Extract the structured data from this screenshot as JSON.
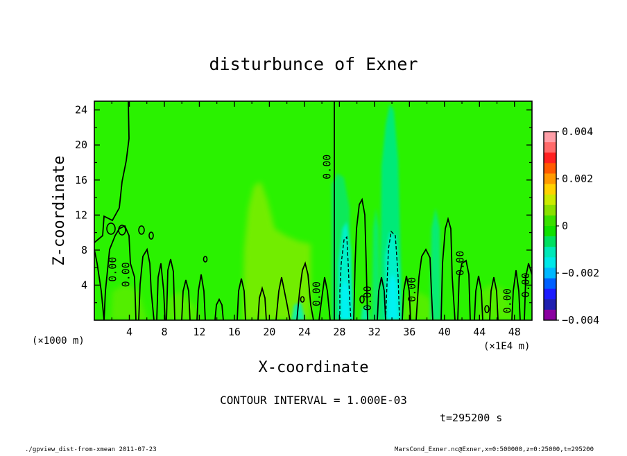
{
  "chart_data": {
    "type": "heatmap",
    "title": "disturbunce of Exner",
    "xlabel": "X-coordinate",
    "ylabel": "Z-coordinate",
    "x_unit_left": "(×1000 m)",
    "x_unit_right": "(×1E4 m)",
    "xlim": [
      0,
      50
    ],
    "ylim": [
      0,
      25
    ],
    "xticks": [
      "4",
      "8",
      "12",
      "16",
      "20",
      "24",
      "28",
      "32",
      "36",
      "40",
      "44",
      "48"
    ],
    "yticks": [
      "4",
      "8",
      "12",
      "16",
      "20",
      "24"
    ],
    "colorbar": {
      "min": -0.004,
      "max": 0.004,
      "labels": [
        "0.004",
        "0.002",
        "0",
        "−0.002",
        "−0.004"
      ],
      "colors": [
        "#ff9fa8",
        "#ff6a6a",
        "#ff2020",
        "#ff5a00",
        "#ff9a00",
        "#ffd200",
        "#ccea00",
        "#8ae000",
        "#3ae000",
        "#10e000",
        "#00e060",
        "#00e8b8",
        "#00e8e8",
        "#00b8ff",
        "#0060ff",
        "#1c1cff",
        "#2020b0",
        "#8a00a0"
      ]
    },
    "contour_labels": [
      {
        "text": "0.00",
        "x": 27.0,
        "z": 17.5
      },
      {
        "text": "0.00",
        "x": 2.5,
        "z": 5.8
      },
      {
        "text": "0.00",
        "x": 4.0,
        "z": 5.2
      },
      {
        "text": "0.00",
        "x": 25.8,
        "z": 3.0
      },
      {
        "text": "0.00",
        "x": 31.6,
        "z": 2.5
      },
      {
        "text": "0.00",
        "x": 36.7,
        "z": 3.5
      },
      {
        "text": "0.00",
        "x": 42.2,
        "z": 6.5
      },
      {
        "text": "0.00",
        "x": 47.6,
        "z": 2.2
      },
      {
        "text": "0.00",
        "x": 49.7,
        "z": 4.0
      }
    ],
    "contour_interval_text": "CONTOUR INTERVAL = 1.000E-03",
    "time_text": "t=295200 s"
  },
  "footer": {
    "left": "./gpview_dist-from-xmean  2011-07-23",
    "right": "MarsCond_Exner.nc@Exner,x=0:500000,z=0:25000,t=295200"
  },
  "colors": {
    "background": "#2af200",
    "light_green": "#7aed00",
    "dim_green": "#58ee00",
    "teal": "#00ea78",
    "aqua": "#00f0c8",
    "cyan": "#00f2f2"
  }
}
